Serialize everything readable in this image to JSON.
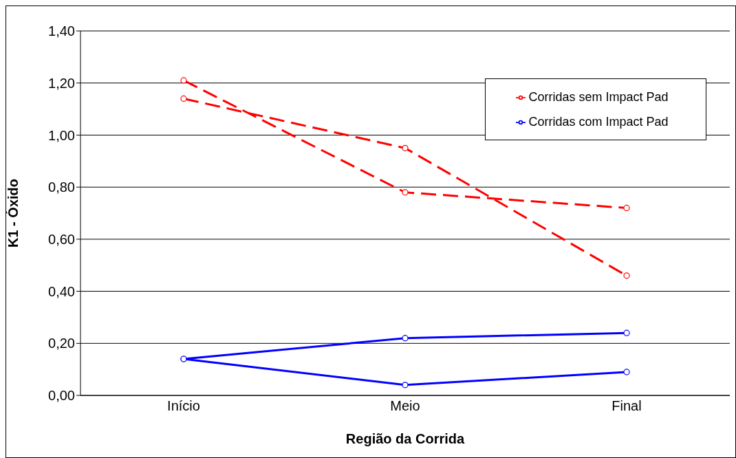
{
  "chart_data": {
    "type": "line",
    "xlabel": "Região da Corrida",
    "ylabel": "K1 - Óxido",
    "categories": [
      "Início",
      "Meio",
      "Final"
    ],
    "series": [
      {
        "name": "Corridas sem Impact Pad",
        "color": "#ff0000",
        "line_style": "dashed",
        "values": [
          1.21,
          0.78,
          0.72
        ]
      },
      {
        "color": "#ff0000",
        "line_style": "dashed",
        "values": [
          1.14,
          0.95,
          0.46
        ]
      },
      {
        "name": "Corridas com Impact Pad",
        "color": "#0000ff",
        "line_style": "solid",
        "values": [
          0.14,
          0.22,
          0.24
        ]
      },
      {
        "color": "#0000ff",
        "line_style": "solid",
        "values": [
          0.14,
          0.04,
          0.09
        ]
      }
    ],
    "ylim": [
      0,
      1.4
    ],
    "yticks": [
      {
        "value": 0,
        "label": "0,00"
      },
      {
        "value": 0.2,
        "label": "0,20"
      },
      {
        "value": 0.4,
        "label": "0,40"
      },
      {
        "value": 0.6,
        "label": "0,60"
      },
      {
        "value": 0.8,
        "label": "0,80"
      },
      {
        "value": 1,
        "label": "1,00"
      },
      {
        "value": 1.2,
        "label": "1,20"
      },
      {
        "value": 1.4,
        "label": "1,40"
      }
    ],
    "grid": "y",
    "legend": "top right",
    "marker": "circle"
  }
}
